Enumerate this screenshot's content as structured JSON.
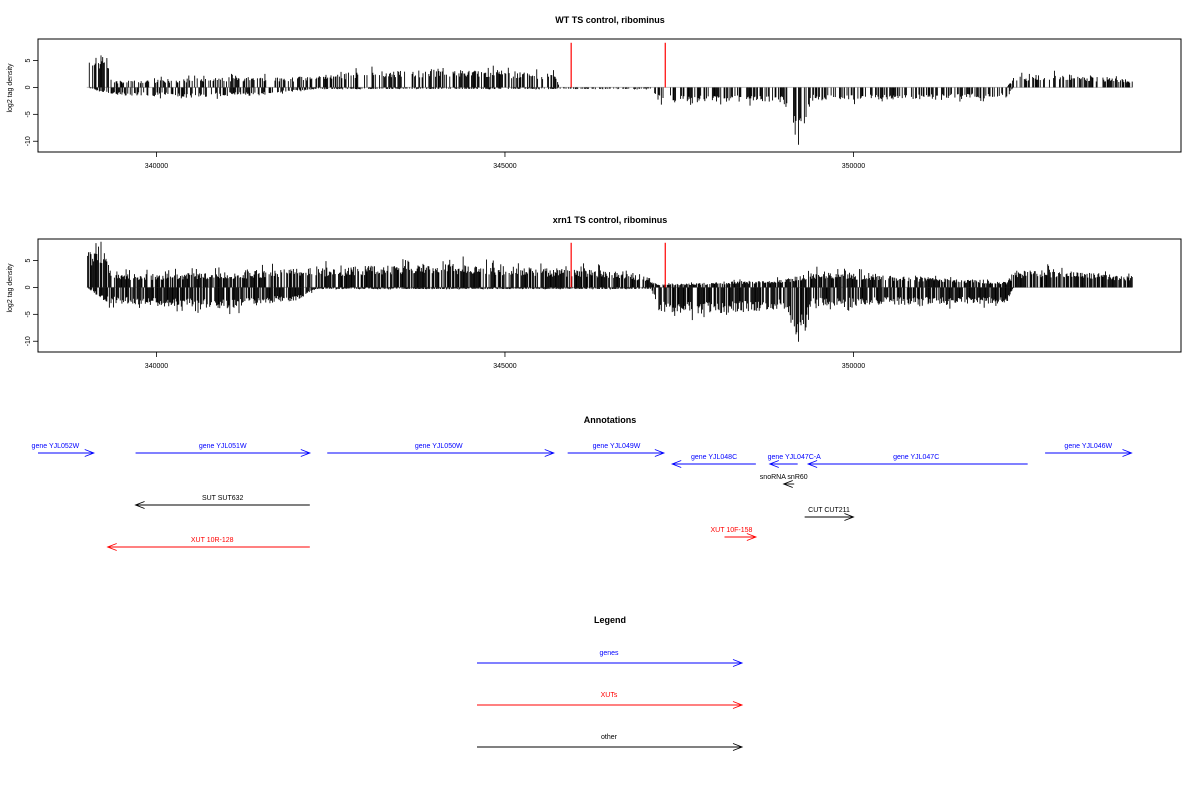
{
  "chart_data": [
    {
      "type": "bar",
      "title": "WT TS control, ribominus",
      "ylabel": "log2 tag density",
      "xlim": [
        338300,
        354700
      ],
      "ylim": [
        -12,
        9
      ],
      "x_ticks": [
        340000,
        345000,
        350000
      ],
      "y_ticks": [
        5,
        0,
        -5,
        -10
      ],
      "signal_x_range": [
        339000,
        354000
      ],
      "red_marker_x": [
        345950,
        347300
      ],
      "red_marker_height": 8.3,
      "sense_profile": [
        {
          "x": 339000,
          "y": 4.5
        },
        {
          "x": 339200,
          "y": 6.5
        },
        {
          "x": 339400,
          "y": 1.2
        },
        {
          "x": 340000,
          "y": 1.5
        },
        {
          "x": 341000,
          "y": 2.0
        },
        {
          "x": 342000,
          "y": 2.0
        },
        {
          "x": 342500,
          "y": 2.5
        },
        {
          "x": 343000,
          "y": 3.0
        },
        {
          "x": 344000,
          "y": 3.5
        },
        {
          "x": 345000,
          "y": 3.2
        },
        {
          "x": 345700,
          "y": 2.5
        },
        {
          "x": 345800,
          "y": 0
        },
        {
          "x": 347700,
          "y": 0
        },
        {
          "x": 352200,
          "y": 0
        },
        {
          "x": 352300,
          "y": 2.0
        },
        {
          "x": 353000,
          "y": 2.5
        },
        {
          "x": 354000,
          "y": 1.5
        }
      ],
      "antisense_profile": [
        {
          "x": 339000,
          "y": 0
        },
        {
          "x": 339400,
          "y": -1.5
        },
        {
          "x": 340500,
          "y": -1.8
        },
        {
          "x": 341500,
          "y": -1.5
        },
        {
          "x": 342300,
          "y": -0.3
        },
        {
          "x": 347100,
          "y": -0.3
        },
        {
          "x": 347200,
          "y": -2.5
        },
        {
          "x": 349000,
          "y": -2.8
        },
        {
          "x": 349200,
          "y": -11.5
        },
        {
          "x": 349400,
          "y": -2.5
        },
        {
          "x": 352200,
          "y": -2.0
        },
        {
          "x": 352300,
          "y": 0
        },
        {
          "x": 354000,
          "y": 0
        }
      ],
      "bar_density": 0.55
    },
    {
      "type": "bar",
      "title": "xrn1 TS control, ribominus",
      "ylabel": "log2 tag density",
      "xlim": [
        338300,
        354700
      ],
      "ylim": [
        -12,
        9
      ],
      "x_ticks": [
        340000,
        345000,
        350000
      ],
      "y_ticks": [
        5,
        0,
        -5,
        -10
      ],
      "signal_x_range": [
        339000,
        354000
      ],
      "red_marker_x": [
        345950,
        347300
      ],
      "red_marker_height": 8.3,
      "sense_profile": [
        {
          "x": 339000,
          "y": 6.5
        },
        {
          "x": 339200,
          "y": 8.0
        },
        {
          "x": 339400,
          "y": 2.5
        },
        {
          "x": 340000,
          "y": 2.5
        },
        {
          "x": 341000,
          "y": 2.8
        },
        {
          "x": 342000,
          "y": 3.5
        },
        {
          "x": 343000,
          "y": 4.0
        },
        {
          "x": 344000,
          "y": 4.5
        },
        {
          "x": 345000,
          "y": 4.0
        },
        {
          "x": 345800,
          "y": 3.5
        },
        {
          "x": 346800,
          "y": 3.0
        },
        {
          "x": 347200,
          "y": 0.5
        },
        {
          "x": 349000,
          "y": 1.5
        },
        {
          "x": 349500,
          "y": 3.0
        },
        {
          "x": 352200,
          "y": 1.0
        },
        {
          "x": 352300,
          "y": 3.0
        },
        {
          "x": 353000,
          "y": 3.5
        },
        {
          "x": 354000,
          "y": 2.0
        }
      ],
      "antisense_profile": [
        {
          "x": 339000,
          "y": 0
        },
        {
          "x": 339300,
          "y": -3.0
        },
        {
          "x": 340000,
          "y": -3.5
        },
        {
          "x": 341000,
          "y": -4.0
        },
        {
          "x": 342000,
          "y": -2.5
        },
        {
          "x": 342300,
          "y": -0.3
        },
        {
          "x": 347100,
          "y": -0.3
        },
        {
          "x": 347200,
          "y": -4.5
        },
        {
          "x": 348000,
          "y": -5.0
        },
        {
          "x": 349000,
          "y": -4.0
        },
        {
          "x": 349200,
          "y": -9.5
        },
        {
          "x": 349400,
          "y": -3.5
        },
        {
          "x": 352200,
          "y": -3.0
        },
        {
          "x": 352300,
          "y": 0
        },
        {
          "x": 354000,
          "y": 0
        }
      ],
      "bar_density": 0.8
    }
  ],
  "annotations": {
    "title": "Annotations",
    "features": [
      {
        "label": "gene YJL052W",
        "type": "gene",
        "start": 338300,
        "end": 339100,
        "row": 0,
        "strand": "+",
        "label_x": 338550
      },
      {
        "label": "gene YJL051W",
        "type": "gene",
        "start": 339700,
        "end": 342200,
        "row": 0,
        "strand": "+",
        "label_x": 340950
      },
      {
        "label": "gene YJL050W",
        "type": "gene",
        "start": 342450,
        "end": 345700,
        "row": 0,
        "strand": "+",
        "label_x": 344050
      },
      {
        "label": "gene YJL049W",
        "type": "gene",
        "start": 345900,
        "end": 347280,
        "row": 0,
        "strand": "+",
        "label_x": 346600
      },
      {
        "label": "gene YJL048C",
        "type": "gene",
        "start": 347400,
        "end": 348600,
        "row": 1,
        "strand": "-",
        "label_x": 348000
      },
      {
        "label": "gene YJL047C-A",
        "type": "gene",
        "start": 348800,
        "end": 349200,
        "row": 1,
        "strand": "-",
        "label_x": 349150
      },
      {
        "label": "gene YJL047C",
        "type": "gene",
        "start": 349350,
        "end": 352500,
        "row": 1,
        "strand": "-",
        "label_x": 350900
      },
      {
        "label": "gene YJL046W",
        "type": "gene",
        "start": 352750,
        "end": 353990,
        "row": 0,
        "strand": "+",
        "label_x": 353370
      },
      {
        "label": "snoRNA snR60",
        "type": "other",
        "start": 349000,
        "end": 349150,
        "row": 2,
        "strand": "-",
        "label_x": 349000
      },
      {
        "label": "SUT SUT632",
        "type": "other",
        "start": 339700,
        "end": 342200,
        "row": 3,
        "strand": "-",
        "label_x": 340950
      },
      {
        "label": "CUT CUT211",
        "type": "other",
        "start": 349300,
        "end": 350000,
        "row": 4,
        "strand": "+",
        "label_x": 349650
      },
      {
        "label": "XUT 10F-158",
        "type": "xut",
        "start": 348150,
        "end": 348600,
        "row": 5,
        "strand": "+",
        "label_x": 348250
      },
      {
        "label": "XUT 10R-128",
        "type": "xut",
        "start": 339300,
        "end": 342200,
        "row": 6,
        "strand": "-",
        "label_x": 340800
      }
    ]
  },
  "legend": {
    "title": "Legend",
    "items": [
      {
        "label": "genes",
        "type": "gene"
      },
      {
        "label": "XUTs",
        "type": "xut"
      },
      {
        "label": "other",
        "type": "other"
      }
    ]
  },
  "colors": {
    "gene": "#0000ff",
    "xut": "#ff0000",
    "other": "#000000",
    "marker": "#ff0000",
    "baseline": "#bfbfbf"
  }
}
